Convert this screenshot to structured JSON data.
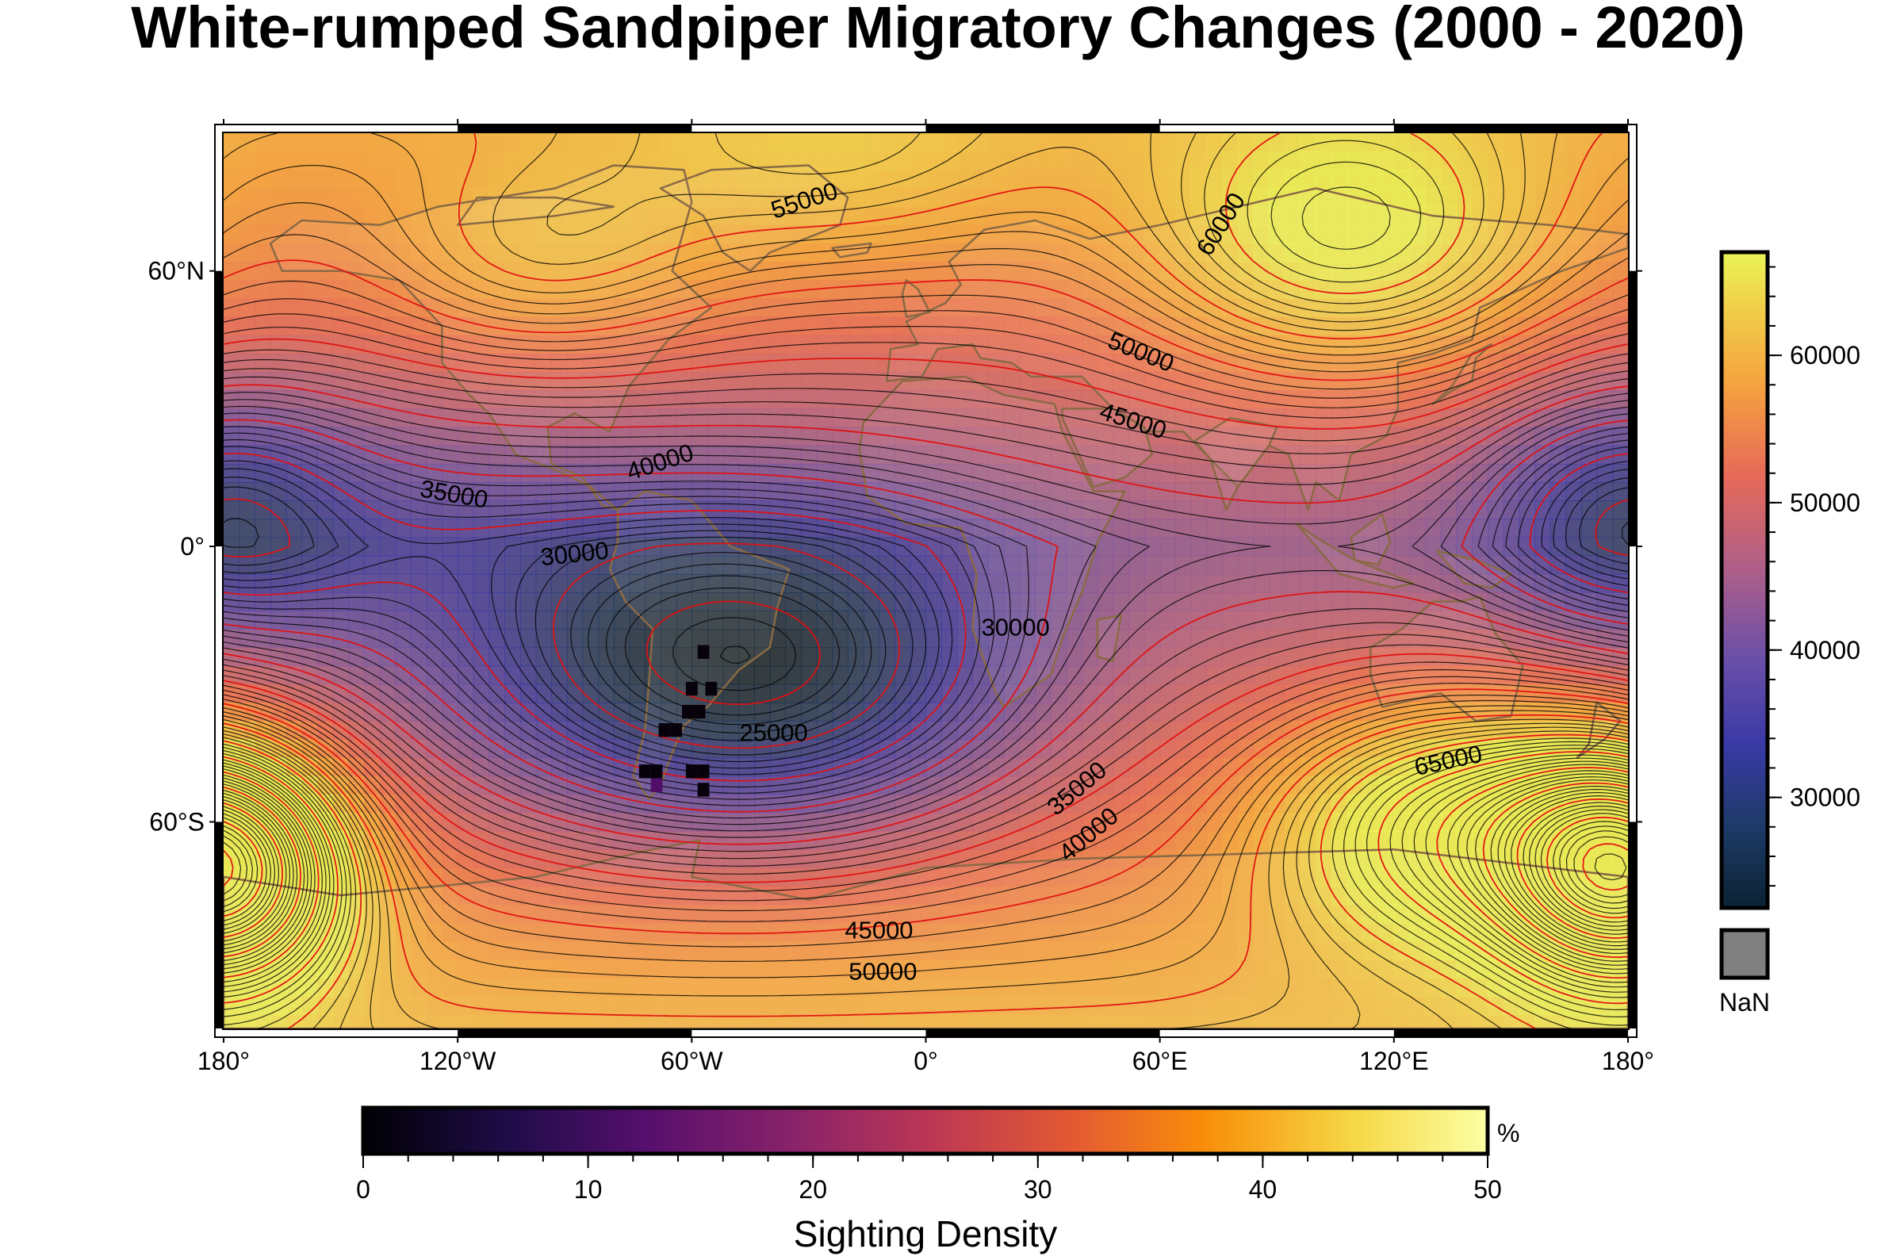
{
  "title": "White-rumped Sandpiper Migratory Changes (2000 - 2020)",
  "map": {
    "projection": "equirectangular",
    "lon_range": [
      -180,
      180
    ],
    "lat_range": [
      -90,
      90
    ],
    "frame_style": "fancy",
    "land_outline_color": "#8a6a45",
    "contour_major_color": "#e01010",
    "contour_minor_color": "#000000",
    "contour_interval": 1000,
    "contour_annotation_interval": 5000,
    "lon_ticks": [
      {
        "value": -180,
        "label": "180°"
      },
      {
        "value": -120,
        "label": "120°W"
      },
      {
        "value": -60,
        "label": "60°W"
      },
      {
        "value": 0,
        "label": "0°"
      },
      {
        "value": 60,
        "label": "60°E"
      },
      {
        "value": 120,
        "label": "120°E"
      },
      {
        "value": 180,
        "label": "180°"
      }
    ],
    "lat_ticks": [
      {
        "value": 60,
        "label": "60°N"
      },
      {
        "value": 0,
        "label": "0°"
      },
      {
        "value": -60,
        "label": "60°S"
      }
    ],
    "contour_labels": [
      {
        "text": "55000",
        "lon": -31,
        "lat": 75
      },
      {
        "text": "60000",
        "lon": 76,
        "lat": 70
      },
      {
        "text": "50000",
        "lon": 55,
        "lat": 42
      },
      {
        "text": "45000",
        "lon": 53,
        "lat": 27
      },
      {
        "text": "40000",
        "lon": -68,
        "lat": 18
      },
      {
        "text": "35000",
        "lon": -121,
        "lat": 11
      },
      {
        "text": "30000",
        "lon": -90,
        "lat": -2
      },
      {
        "text": "30000",
        "lon": 23,
        "lat": -18
      },
      {
        "text": "25000",
        "lon": -39,
        "lat": -41
      },
      {
        "text": "35000",
        "lon": 39,
        "lat": -53
      },
      {
        "text": "40000",
        "lon": 42,
        "lat": -63
      },
      {
        "text": "65000",
        "lon": 134,
        "lat": -47
      },
      {
        "text": "45000",
        "lon": -12,
        "lat": -84
      },
      {
        "text": "50000",
        "lon": -11,
        "lat": -93
      }
    ],
    "sighting_cells": [
      {
        "lon": -57,
        "lat": -23,
        "density": 1
      },
      {
        "lon": -55,
        "lat": -31,
        "density": 1
      },
      {
        "lon": -60,
        "lat": -31,
        "density": 1
      },
      {
        "lon": -61,
        "lat": -36,
        "density": 1
      },
      {
        "lon": -58,
        "lat": -36,
        "density": 1
      },
      {
        "lon": -64,
        "lat": -40,
        "density": 1
      },
      {
        "lon": -67,
        "lat": -40,
        "density": 1
      },
      {
        "lon": -72,
        "lat": -49,
        "density": 1
      },
      {
        "lon": -69,
        "lat": -49,
        "density": 1
      },
      {
        "lon": -60,
        "lat": -49,
        "density": 1
      },
      {
        "lon": -57,
        "lat": -49,
        "density": 1
      },
      {
        "lon": -57,
        "lat": -53,
        "density": 1
      },
      {
        "lon": -69,
        "lat": -52,
        "density": 12
      }
    ]
  },
  "elevation_colorbar": {
    "range": [
      22500,
      67000
    ],
    "ticks": [
      "30000",
      "40000",
      "50000",
      "60000"
    ],
    "tick_values": [
      30000,
      40000,
      50000,
      60000
    ],
    "minor_step": 2000,
    "nan_label": "NaN",
    "nan_color": "#808080"
  },
  "density_colorbar": {
    "label": "Sighting Density",
    "unit": "%",
    "range": [
      0,
      50
    ],
    "ticks": [
      "0",
      "10",
      "20",
      "30",
      "40",
      "50"
    ],
    "minor_step": 2
  }
}
